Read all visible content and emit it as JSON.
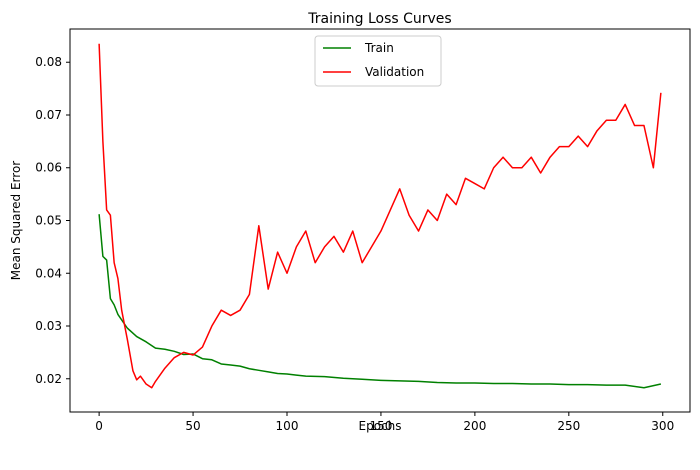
{
  "chart_data": {
    "type": "line",
    "title": "Training Loss Curves",
    "xlabel": "Epochs",
    "ylabel": "Mean Squared Error",
    "xlim": [
      -15.5,
      314.5
    ],
    "ylim": [
      0.0137,
      0.0863
    ],
    "xticks": [
      0,
      50,
      100,
      150,
      200,
      250,
      300
    ],
    "yticks": [
      0.02,
      0.03,
      0.04,
      0.05,
      0.06,
      0.07,
      0.08
    ],
    "grid": false,
    "legend_position": "upper center",
    "series": [
      {
        "name": "Train",
        "color": "#008000",
        "x": [
          0,
          2,
          4,
          6,
          8,
          10,
          15,
          20,
          25,
          30,
          35,
          40,
          45,
          50,
          55,
          60,
          65,
          70,
          75,
          80,
          85,
          90,
          95,
          100,
          105,
          110,
          120,
          130,
          140,
          150,
          160,
          170,
          180,
          190,
          200,
          210,
          220,
          230,
          240,
          250,
          260,
          270,
          280,
          290,
          299
        ],
        "y": [
          0.0512,
          0.0432,
          0.0425,
          0.0352,
          0.034,
          0.0322,
          0.0296,
          0.028,
          0.027,
          0.0258,
          0.0256,
          0.0252,
          0.0246,
          0.0247,
          0.0238,
          0.0236,
          0.0228,
          0.0226,
          0.0224,
          0.0219,
          0.0216,
          0.0213,
          0.021,
          0.0209,
          0.0207,
          0.0205,
          0.0204,
          0.0201,
          0.0199,
          0.0197,
          0.0196,
          0.0195,
          0.0193,
          0.0192,
          0.0192,
          0.0191,
          0.0191,
          0.019,
          0.019,
          0.0189,
          0.0189,
          0.0188,
          0.0188,
          0.0183,
          0.019
        ]
      },
      {
        "name": "Validation",
        "color": "#ff0000",
        "x": [
          0,
          2,
          4,
          6,
          8,
          10,
          12,
          15,
          18,
          20,
          22,
          25,
          28,
          30,
          35,
          40,
          45,
          50,
          55,
          60,
          65,
          70,
          75,
          80,
          85,
          90,
          95,
          100,
          105,
          110,
          115,
          120,
          125,
          130,
          135,
          140,
          145,
          150,
          155,
          160,
          165,
          170,
          175,
          180,
          185,
          190,
          195,
          200,
          205,
          210,
          215,
          220,
          225,
          230,
          235,
          240,
          245,
          250,
          255,
          260,
          265,
          270,
          275,
          280,
          285,
          290,
          295,
          299
        ],
        "y": [
          0.0835,
          0.065,
          0.052,
          0.051,
          0.042,
          0.039,
          0.033,
          0.0275,
          0.0215,
          0.0198,
          0.0205,
          0.019,
          0.0183,
          0.0195,
          0.022,
          0.024,
          0.025,
          0.0245,
          0.026,
          0.03,
          0.033,
          0.032,
          0.033,
          0.036,
          0.049,
          0.037,
          0.044,
          0.04,
          0.045,
          0.048,
          0.042,
          0.045,
          0.047,
          0.044,
          0.048,
          0.042,
          0.045,
          0.048,
          0.052,
          0.056,
          0.051,
          0.048,
          0.052,
          0.05,
          0.055,
          0.053,
          0.058,
          0.057,
          0.056,
          0.06,
          0.062,
          0.06,
          0.06,
          0.062,
          0.059,
          0.062,
          0.064,
          0.064,
          0.066,
          0.064,
          0.067,
          0.069,
          0.069,
          0.072,
          0.068,
          0.068,
          0.06,
          0.0742
        ]
      }
    ]
  }
}
